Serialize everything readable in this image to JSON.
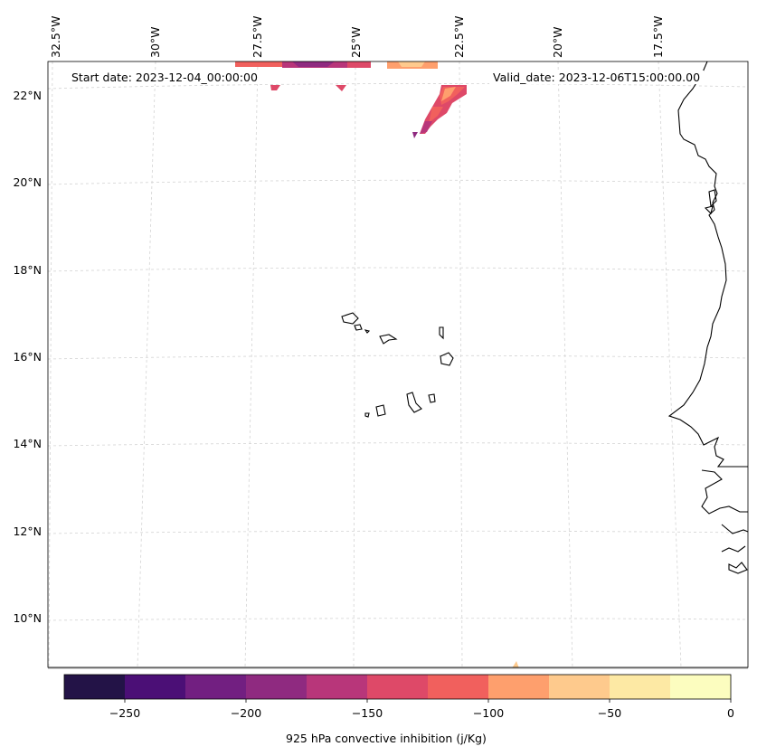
{
  "header": {
    "start_date": "Start date: 2023-12-04_00:00:00",
    "valid_date": "Valid_date: 2023-12-06T15:00:00.00"
  },
  "longitude_labels": [
    "32.5°W",
    "30°W",
    "27.5°W",
    "25°W",
    "22.5°W",
    "20°W",
    "17.5°W"
  ],
  "latitude_labels": [
    "22°N",
    "20°N",
    "18°N",
    "16°N",
    "14°N",
    "12°N",
    "10°N"
  ],
  "colorbar": {
    "label": "925 hPa convective inhibition (j/Kg)",
    "tick_labels": [
      "−250",
      "−200",
      "−150",
      "−100",
      "−50",
      "0"
    ],
    "range": [
      -275,
      0
    ],
    "bin_edges": [
      -275,
      -250,
      -225,
      -200,
      -175,
      -150,
      -125,
      -100,
      -75,
      -50,
      -25,
      0
    ],
    "colors": [
      "#03051a",
      "#231347",
      "#4b0f76",
      "#721f81",
      "#8f2a80",
      "#b8367a",
      "#de4968",
      "#f1605d",
      "#fe9f6d",
      "#feca8d",
      "#fde9a4",
      "#fcfdbf"
    ]
  },
  "map": {
    "border_color": "#000000",
    "grid_color": "#cccccc"
  }
}
